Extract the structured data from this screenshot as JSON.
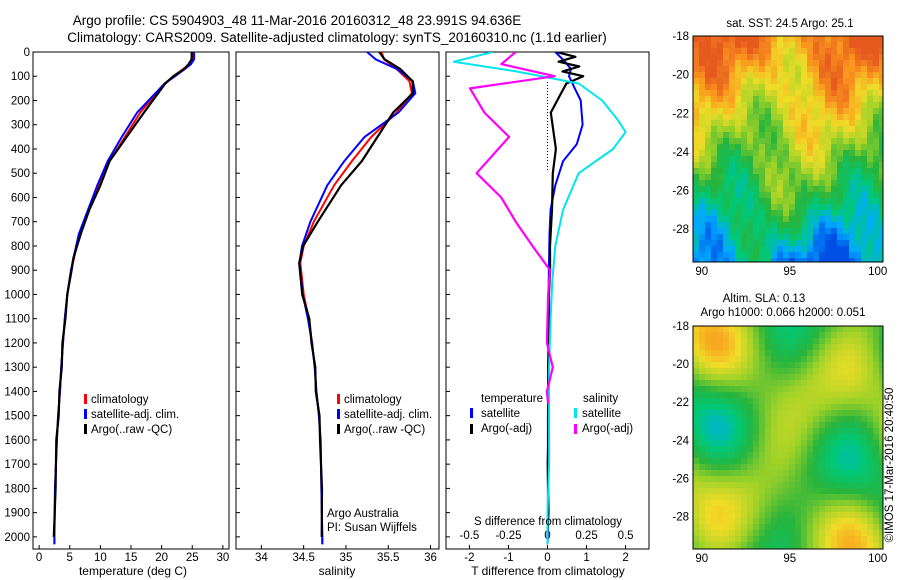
{
  "header": {
    "line1": "Argo profile: CS 5904903_48 11-Mar-2016 20160312_48 23.991S 94.636E",
    "line2": "Climatology: CARS2009. Satellite-adjusted climatology: synTS_20160310.nc (1.1d earlier)"
  },
  "credit": {
    "institution": "Argo Australia",
    "pi": "PI: Susan Wijffels",
    "stamp": "©IMOS 17-Mar-2016 20:40:50"
  },
  "colors": {
    "climatology": "#ff0000",
    "satellite": "#0000ff",
    "argo": "#000000",
    "sal_satellite": "#00e5ee",
    "sal_argo": "#ff00ff"
  },
  "chart_data": [
    {
      "type": "line",
      "name": "temperature profile",
      "xlabel": "temperature (deg C)",
      "ylabel": "",
      "xlim": [
        -1,
        31
      ],
      "ylim": [
        0,
        2050
      ],
      "y_reversed": true,
      "xticks": [
        0,
        5,
        10,
        15,
        20,
        25,
        30
      ],
      "yticks": [
        0,
        100,
        200,
        300,
        400,
        500,
        600,
        700,
        800,
        900,
        1000,
        1100,
        1200,
        1300,
        1400,
        1500,
        1600,
        1700,
        1800,
        1900,
        2000
      ],
      "legend": [
        "climatology",
        "satellite-adj. clim.",
        "Argo(..raw -QC)"
      ],
      "series": [
        {
          "name": "climatology",
          "color": "#ff0000",
          "x": [
            25.1,
            25,
            24.6,
            23.5,
            22,
            20.5,
            16.5,
            14,
            11.5,
            9.8,
            8.2,
            6.6,
            5.7,
            5.2,
            4.6,
            4.2,
            3.9,
            3.6,
            3.4,
            3.1,
            2.9,
            2.6,
            2.5,
            2.5
          ],
          "y": [
            0,
            30,
            50,
            70,
            100,
            130,
            250,
            350,
            450,
            550,
            650,
            750,
            850,
            900,
            1000,
            1100,
            1200,
            1300,
            1400,
            1500,
            1600,
            1800,
            2000,
            2030
          ]
        },
        {
          "name": "satellite-adj. clim.",
          "color": "#0000ff",
          "x": [
            25.3,
            25.3,
            24.8,
            23.8,
            22.2,
            20.5,
            16,
            13.5,
            11.2,
            9.5,
            8,
            6.5,
            5.6,
            5.2,
            4.6,
            4.2,
            3.9,
            3.6,
            3.4,
            3.1,
            2.9,
            2.6,
            2.5,
            2.5
          ],
          "y": [
            0,
            30,
            50,
            70,
            100,
            130,
            250,
            350,
            450,
            550,
            650,
            750,
            850,
            900,
            1000,
            1100,
            1200,
            1300,
            1400,
            1500,
            1600,
            1800,
            2000,
            2030
          ]
        },
        {
          "name": "Argo(..raw -QC)",
          "color": "#000000",
          "x": [
            25,
            24.8,
            24.5,
            23.6,
            22,
            20.5,
            17.2,
            14.2,
            11.6,
            9.9,
            8.3,
            6.7,
            5.7,
            5.2,
            4.7,
            4.2,
            3.9,
            3.6,
            3.4,
            3.1,
            2.9,
            2.6,
            2.5
          ],
          "y": [
            0,
            30,
            50,
            70,
            100,
            130,
            250,
            350,
            450,
            550,
            650,
            750,
            850,
            900,
            1000,
            1100,
            1200,
            1300,
            1400,
            1500,
            1600,
            1800,
            2000
          ]
        }
      ]
    },
    {
      "type": "line",
      "name": "salinity profile",
      "xlabel": "salinity",
      "ylabel": "",
      "xlim": [
        33.7,
        36.1
      ],
      "ylim": [
        0,
        2050
      ],
      "y_reversed": true,
      "xticks": [
        34,
        34.5,
        35,
        35.5,
        36
      ],
      "legend": [
        "climatology",
        "satellite-adj. clim.",
        "Argo(..raw -QC)"
      ],
      "series": [
        {
          "name": "climatology",
          "color": "#ff0000",
          "x": [
            35.42,
            35.45,
            35.6,
            35.75,
            35.78,
            35.6,
            35.3,
            35.07,
            34.86,
            34.62,
            34.5,
            34.46,
            34.5,
            34.56,
            34.6,
            34.63,
            34.65,
            34.68,
            34.7,
            34.71,
            34.72,
            34.72
          ],
          "y": [
            0,
            30,
            70,
            120,
            170,
            250,
            350,
            450,
            550,
            700,
            800,
            870,
            1000,
            1100,
            1200,
            1300,
            1400,
            1500,
            1600,
            1800,
            2000,
            2030
          ]
        },
        {
          "name": "satellite-adj. clim.",
          "color": "#0000ff",
          "x": [
            35.25,
            35.35,
            35.6,
            35.79,
            35.82,
            35.62,
            35.22,
            34.98,
            34.78,
            34.58,
            34.48,
            34.45,
            34.49,
            34.55,
            34.6,
            34.63,
            34.65,
            34.68,
            34.7,
            34.71,
            34.72,
            34.72
          ],
          "y": [
            0,
            30,
            70,
            120,
            170,
            250,
            350,
            450,
            550,
            700,
            800,
            870,
            1000,
            1100,
            1200,
            1300,
            1400,
            1500,
            1600,
            1800,
            2000,
            2030
          ]
        },
        {
          "name": "Argo(..raw -QC)",
          "color": "#000000",
          "x": [
            35.4,
            35.45,
            35.65,
            35.78,
            35.8,
            35.55,
            35.38,
            35.18,
            34.95,
            34.66,
            34.5,
            34.44,
            34.49,
            34.56,
            34.6,
            34.63,
            34.65,
            34.68,
            34.7,
            34.71,
            34.72
          ],
          "y": [
            0,
            30,
            70,
            120,
            170,
            250,
            350,
            450,
            550,
            700,
            800,
            870,
            1000,
            1100,
            1200,
            1300,
            1400,
            1500,
            1600,
            1800,
            2000
          ]
        }
      ]
    },
    {
      "type": "line",
      "name": "difference from climatology",
      "xlabel": "T difference from climatology",
      "x2label": "S difference from climatology",
      "xlim": [
        -2.6,
        2.6
      ],
      "ylim": [
        0,
        2050
      ],
      "y_reversed": true,
      "xticks": [
        -2,
        -1,
        0,
        1,
        2
      ],
      "x2ticks": [
        "-0.5",
        "-0.25",
        "0",
        "0.25",
        "0.5"
      ],
      "legend_headers": [
        "temperature",
        "salinity"
      ],
      "legend": [
        "satellite",
        "Argo(-adj)",
        "satellite",
        "Argo(-adj)"
      ],
      "series": [
        {
          "name": "temperature satellite",
          "color": "#0000ff",
          "x": [
            0.2,
            0.45,
            0.6,
            0.55,
            0.7,
            0.85,
            0.9,
            0.75,
            0.4,
            0.2,
            0.08,
            0.05,
            0.04,
            0.03,
            0.02,
            0.02,
            0.01,
            0.01,
            0.01,
            0.01,
            0
          ],
          "y": [
            0,
            40,
            70,
            100,
            150,
            200,
            300,
            380,
            450,
            550,
            650,
            750,
            850,
            950,
            1100,
            1300,
            1500,
            1700,
            1850,
            2000,
            2030
          ]
        },
        {
          "name": "temperature Argo(-adj)",
          "color": "#000000",
          "x": [
            0.25,
            0.7,
            0.3,
            0.8,
            0.4,
            0.9,
            0.5,
            0.3,
            0.1,
            0.2,
            0.15,
            0.1,
            0.08,
            0.05,
            0.05,
            0.03,
            0.03,
            0.02,
            0.02,
            0.01,
            0.01
          ],
          "y": [
            0,
            20,
            40,
            60,
            80,
            100,
            130,
            180,
            250,
            400,
            500,
            650,
            800,
            900,
            1000,
            1150,
            1300,
            1500,
            1700,
            1900,
            2000
          ]
        },
        {
          "name": "salinity satellite",
          "color": "#00e5ee",
          "x": [
            -0.35,
            -0.6,
            -0.2,
            0.2,
            0.35,
            0.45,
            0.5,
            0.42,
            0.2,
            0.1,
            0.05,
            0.03,
            0.02,
            0.01,
            0.01,
            0.01,
            0,
            0
          ],
          "y": [
            0,
            40,
            80,
            130,
            200,
            280,
            330,
            400,
            500,
            650,
            800,
            950,
            1100,
            1300,
            1500,
            1700,
            1900,
            2030
          ]
        },
        {
          "name": "salinity Argo(-adj)",
          "color": "#ff00ff",
          "x": [
            -0.2,
            -0.3,
            0.05,
            -0.5,
            -0.4,
            -0.25,
            -0.45,
            -0.3,
            -0.2,
            -0.1,
            0.02,
            0,
            0,
            0.03,
            0,
            0
          ],
          "y": [
            0,
            50,
            100,
            150,
            250,
            350,
            500,
            600,
            700,
            800,
            900,
            1000,
            1200,
            1300,
            1400,
            1450
          ]
        }
      ]
    },
    {
      "type": "heatmap",
      "name": "sat SST map",
      "title": "sat. SST: 24.5 Argo: 25.1",
      "xlim": [
        89.5,
        100.3
      ],
      "ylim": [
        -29.7,
        -18
      ],
      "xticks": [
        90,
        95,
        100
      ],
      "yticks": [
        -18,
        -20,
        -22,
        -24,
        -26,
        -28
      ]
    },
    {
      "type": "heatmap",
      "name": "altimetry SLA map",
      "title": "Altim. SLA: 0.13",
      "subtitle": "Argo h1000: 0.066 h2000: 0.051",
      "xlim": [
        89.5,
        100.3
      ],
      "ylim": [
        -29.7,
        -18
      ],
      "xticks": [
        90,
        95,
        100
      ],
      "yticks": [
        -18,
        -20,
        -22,
        -24,
        -26,
        -28
      ]
    }
  ]
}
